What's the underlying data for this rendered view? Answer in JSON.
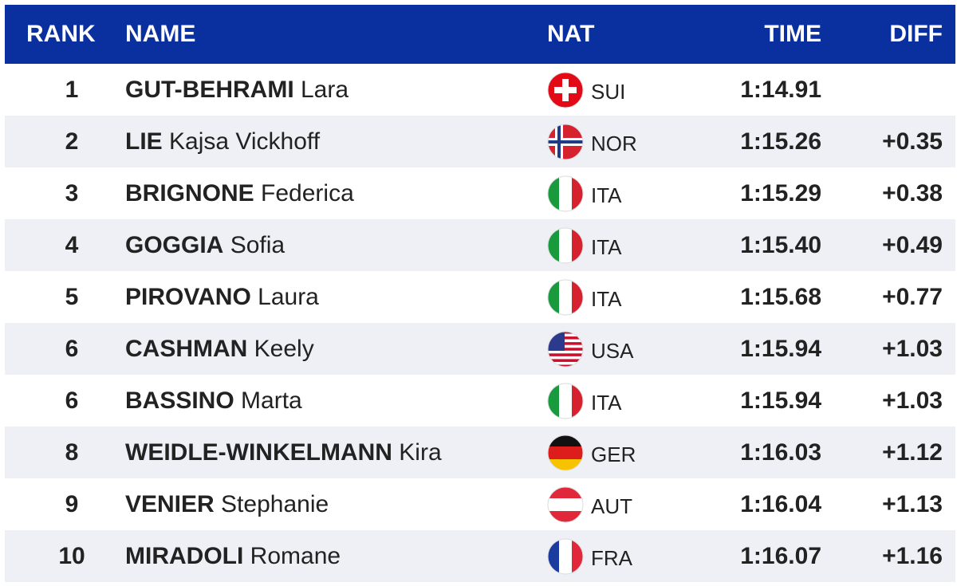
{
  "header": {
    "rank": "RANK",
    "name": "NAME",
    "nat": "NAT",
    "time": "TIME",
    "diff": "DIFF"
  },
  "rows": [
    {
      "rank": "1",
      "surname": "GUT-BEHRAMI",
      "given": "Lara",
      "nat": "SUI",
      "time": "1:14.91"
    },
    {
      "rank": "2",
      "surname": "LIE",
      "given": "Kajsa Vickhoff",
      "nat": "NOR",
      "time": "1:15.26",
      "diff": "+0.35"
    },
    {
      "rank": "3",
      "surname": "BRIGNONE",
      "given": "Federica",
      "nat": "ITA",
      "time": "1:15.29",
      "diff": "+0.38"
    },
    {
      "rank": "4",
      "surname": "GOGGIA",
      "given": "Sofia",
      "nat": "ITA",
      "time": "1:15.40",
      "diff": "+0.49"
    },
    {
      "rank": "5",
      "surname": "PIROVANO",
      "given": "Laura",
      "nat": "ITA",
      "time": "1:15.68",
      "diff": "+0.77"
    },
    {
      "rank": "6",
      "surname": "CASHMAN",
      "given": "Keely",
      "nat": "USA",
      "time": "1:15.94",
      "diff": "+1.03"
    },
    {
      "rank": "6",
      "surname": "BASSINO",
      "given": "Marta",
      "nat": "ITA",
      "time": "1:15.94",
      "diff": "+1.03"
    },
    {
      "rank": "8",
      "surname": "WEIDLE-WINKELMANN",
      "given": "Kira",
      "nat": "GER",
      "time": "1:16.03",
      "diff": "+1.12"
    },
    {
      "rank": "9",
      "surname": "VENIER",
      "given": "Stephanie",
      "nat": "AUT",
      "time": "1:16.04",
      "diff": "+1.13"
    },
    {
      "rank": "10",
      "surname": "MIRADOLI",
      "given": "Romane",
      "nat": "FRA",
      "time": "1:16.07",
      "diff": "+1.16"
    }
  ]
}
